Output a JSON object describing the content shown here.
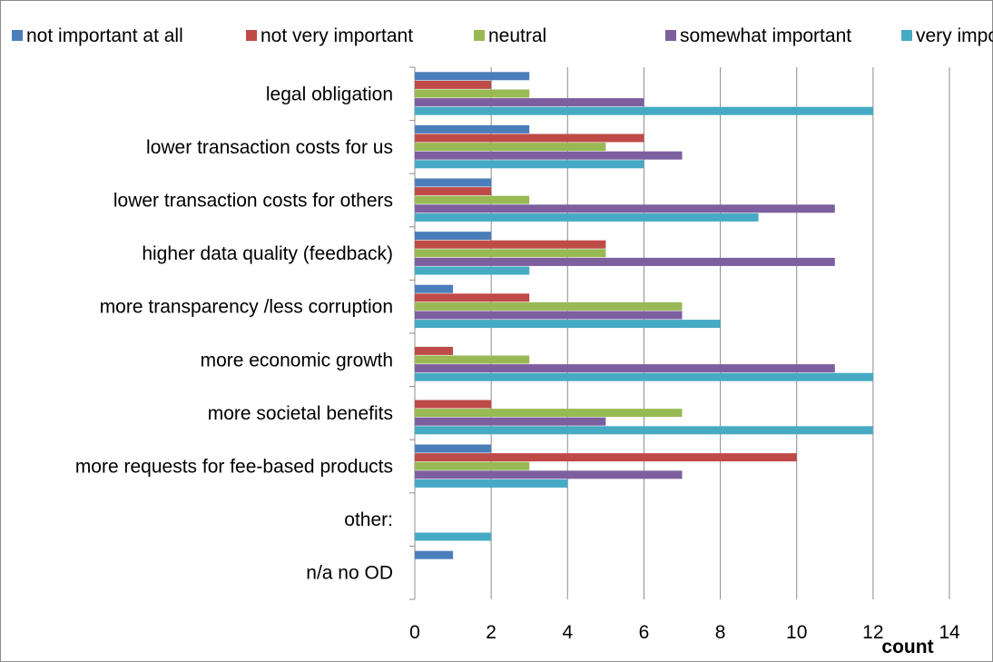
{
  "chart_data": {
    "type": "bar",
    "orientation": "horizontal",
    "categories": [
      "legal obligation",
      "lower transaction costs for us",
      "lower transaction costs for others",
      "higher data quality (feedback)",
      "more transparency /less corruption",
      "more economic growth",
      "more societal benefits",
      "more requests for fee-based products",
      "other:",
      "n/a no OD"
    ],
    "series": [
      {
        "name": "not important at all",
        "color": "#4a7ebb",
        "values": [
          3,
          3,
          2,
          2,
          1,
          0,
          0,
          2,
          0,
          1
        ]
      },
      {
        "name": "not very important",
        "color": "#be4b48",
        "values": [
          2,
          6,
          2,
          5,
          3,
          1,
          2,
          10,
          0,
          0
        ]
      },
      {
        "name": "neutral",
        "color": "#98b954",
        "values": [
          3,
          5,
          3,
          5,
          7,
          3,
          7,
          3,
          0,
          0
        ]
      },
      {
        "name": "somewhat important",
        "color": "#7d5fa0",
        "values": [
          6,
          7,
          11,
          11,
          7,
          11,
          5,
          7,
          0,
          0
        ]
      },
      {
        "name": "very important",
        "color": "#46aac4",
        "values": [
          12,
          6,
          9,
          3,
          8,
          12,
          12,
          4,
          2,
          0
        ]
      }
    ],
    "xlabel": "count",
    "ylabel": "",
    "xlim": [
      0,
      14
    ],
    "xticks": [
      "0",
      "2",
      "4",
      "6",
      "8",
      "10",
      "12",
      "14"
    ],
    "grid": true,
    "legend_position": "top"
  }
}
